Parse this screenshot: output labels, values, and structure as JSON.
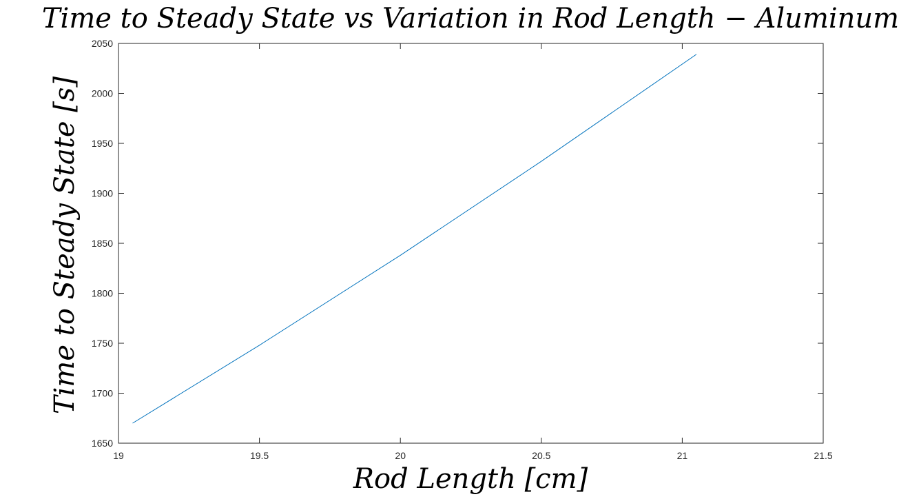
{
  "chart_data": {
    "type": "line",
    "title": "Time to Steady State vs Variation in Rod Length − Aluminum",
    "xlabel": "Rod Length [cm]",
    "ylabel": "Time to Steady State [s]",
    "xlim": [
      19,
      21.5
    ],
    "ylim": [
      1650,
      2050
    ],
    "x_ticks": [
      19,
      19.5,
      20,
      20.5,
      21,
      21.5
    ],
    "y_ticks": [
      1650,
      1700,
      1750,
      1800,
      1850,
      1900,
      1950,
      2000,
      2050
    ],
    "x_tick_labels": [
      "19",
      "19.5",
      "20",
      "20.5",
      "21",
      "21.5"
    ],
    "y_tick_labels": [
      "1650",
      "1700",
      "1750",
      "1800",
      "1850",
      "1900",
      "1950",
      "2000",
      "2050"
    ],
    "grid": false,
    "series": [
      {
        "color": "#0072BD",
        "x": [
          19.05,
          19.5,
          20.0,
          20.5,
          21.05
        ],
        "y": [
          1670,
          1748,
          1838,
          1932,
          2039
        ]
      }
    ]
  }
}
